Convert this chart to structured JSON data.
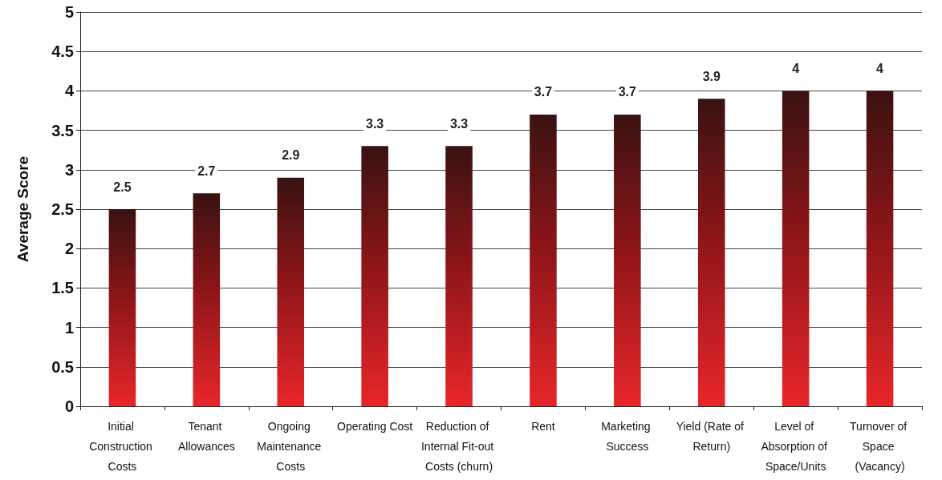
{
  "chart_data": {
    "type": "bar",
    "ylabel": "Average Score",
    "categories": [
      "Initial Construction Costs",
      "Tenant Allowances",
      "Ongoing Maintenance Costs",
      "Operating Cost",
      "Reduction of Internal Fit-out Costs (churn)",
      "Rent",
      "Marketing Success",
      "Yield (Rate of Return)",
      "Level of Absorption of Space/Units",
      "Turnover of Space (Vacancy)"
    ],
    "values": [
      2.5,
      2.7,
      2.9,
      3.3,
      3.3,
      3.7,
      3.7,
      3.9,
      4,
      4
    ],
    "color": "#e8262a",
    "ylim": [
      0,
      5
    ],
    "yticks": [
      0,
      0.5,
      1,
      1.5,
      2,
      2.5,
      3,
      3.5,
      4,
      4.5,
      5
    ],
    "grid": "y",
    "data_labels": true
  }
}
